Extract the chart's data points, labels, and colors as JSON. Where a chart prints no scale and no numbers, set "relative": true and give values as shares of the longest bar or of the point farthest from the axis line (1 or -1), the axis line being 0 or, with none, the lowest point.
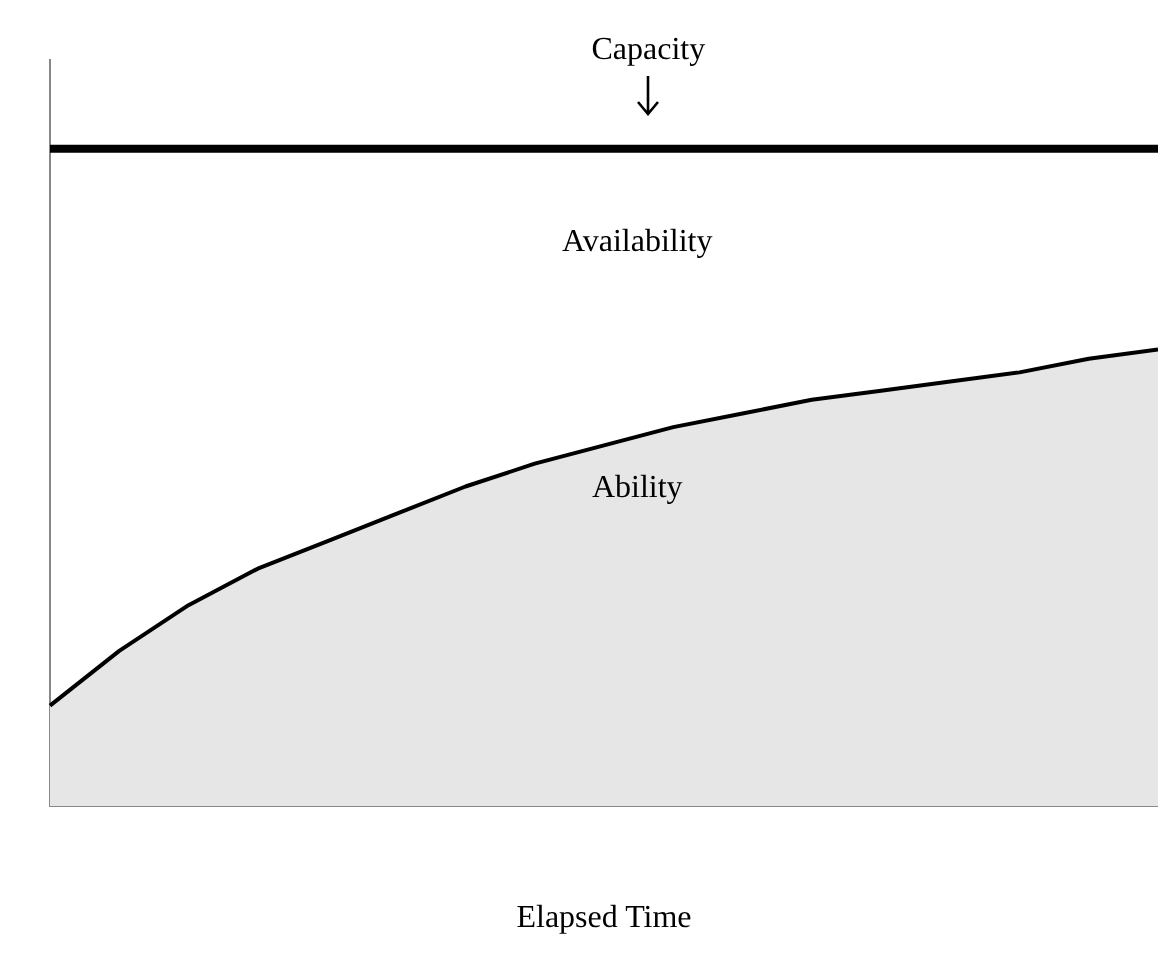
{
  "chart_data": {
    "type": "area",
    "relative": true,
    "xlabel": "Elapsed Time",
    "categories": [
      null,
      null,
      null,
      null,
      null,
      null,
      null,
      null,
      null,
      null,
      null,
      null,
      null,
      null,
      null,
      null,
      null
    ],
    "series": [
      {
        "color": "#000000",
        "values": [
          0.22,
          0.34,
          0.44,
          0.52,
          0.58,
          0.64,
          0.7,
          0.75,
          0.79,
          0.83,
          0.86,
          0.89,
          0.91,
          0.93,
          0.95,
          0.98,
          1
        ]
      }
    ],
    "ref_lines": [
      {
        "axis": "y",
        "value": 1.44,
        "label": "Capacity",
        "color": "#000000"
      }
    ],
    "annotations": [
      "Availability",
      "Ability"
    ],
    "grid": false,
    "legend": false,
    "marker": "none",
    "line_style": "solid"
  }
}
